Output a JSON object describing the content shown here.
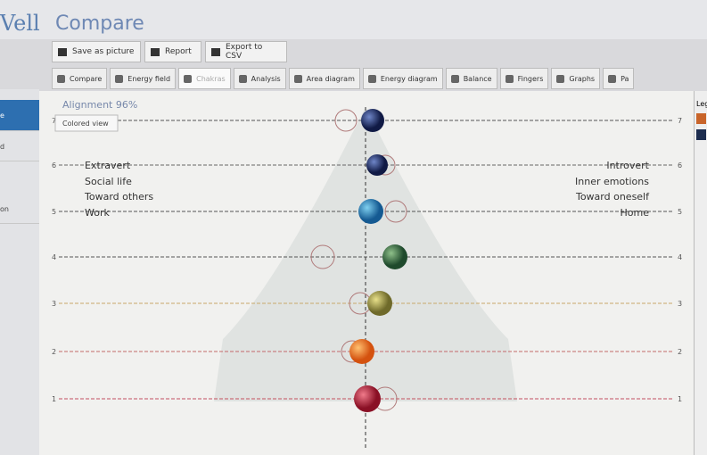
{
  "header": {
    "logo": "Vell",
    "title": "Compare"
  },
  "toolbar": [
    "Save as picture",
    "Report",
    "Export to CSV"
  ],
  "tabs": [
    "Compare",
    "Energy field",
    "Chakras",
    "Analysis",
    "Area diagram",
    "Energy diagram",
    "Balance",
    "Fingers",
    "Graphs",
    "Pa"
  ],
  "sidebar": [
    "ne",
    "e",
    "d",
    "on"
  ],
  "panel": {
    "alignment": "Alignment 96%",
    "colored_view": "Colored view",
    "levels": [
      "7",
      "6",
      "5",
      "4",
      "3",
      "2",
      "1"
    ],
    "left_labels": [
      "Extravert",
      "Social life",
      "Toward others",
      "Work"
    ],
    "right_labels": [
      "Introvert",
      "Inner emotions",
      "Toward oneself",
      "Home"
    ]
  },
  "legend": {
    "title": "Leg"
  }
}
